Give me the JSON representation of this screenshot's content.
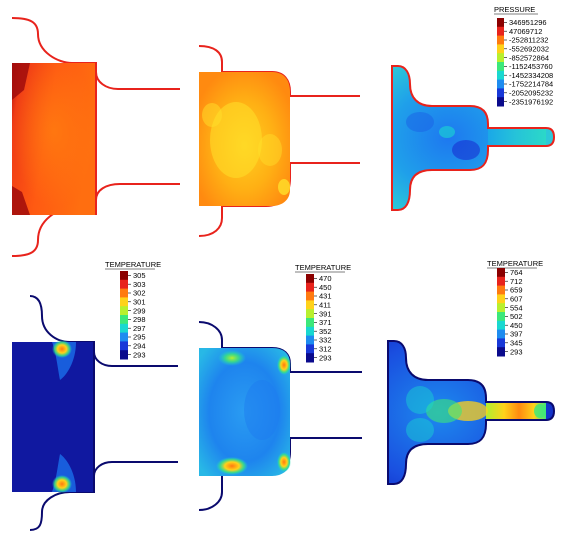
{
  "pressure_legend": {
    "title": "PRESSURE",
    "values": [
      "346951296",
      "47069712",
      "-252811232",
      "-552692032",
      "-852572864",
      "-1152453760",
      "-1452334208",
      "-1752214784",
      "-2052095232",
      "-2351976192"
    ],
    "colors": [
      "#8b0000",
      "#e8231c",
      "#ff7a10",
      "#ffd21a",
      "#b8f02e",
      "#3ce87a",
      "#19d8d0",
      "#1e8cf0",
      "#1838d8",
      "#0a0a8c"
    ]
  },
  "temperature_legends": [
    {
      "title": "TEMPERATURE",
      "values": [
        "305",
        "303",
        "302",
        "301",
        "299",
        "298",
        "297",
        "295",
        "294",
        "293"
      ],
      "colors": [
        "#8b0000",
        "#e8231c",
        "#ff7a10",
        "#ffd21a",
        "#b8f02e",
        "#3ce87a",
        "#19d8d0",
        "#1e8cf0",
        "#1838d8",
        "#0a0a8c"
      ]
    },
    {
      "title": "TEMPERATURE",
      "values": [
        "470",
        "450",
        "431",
        "411",
        "391",
        "371",
        "352",
        "332",
        "312",
        "293"
      ],
      "colors": [
        "#8b0000",
        "#e8231c",
        "#ff7a10",
        "#ffd21a",
        "#b8f02e",
        "#3ce87a",
        "#19d8d0",
        "#1e8cf0",
        "#1838d8",
        "#0a0a8c"
      ]
    },
    {
      "title": "TEMPERATURE",
      "values": [
        "764",
        "712",
        "659",
        "607",
        "554",
        "502",
        "450",
        "397",
        "345",
        "293"
      ],
      "colors": [
        "#8b0000",
        "#e8231c",
        "#ff7a10",
        "#ffd21a",
        "#b8f02e",
        "#3ce87a",
        "#19d8d0",
        "#1e8cf0",
        "#1838d8",
        "#0a0a8c"
      ]
    }
  ],
  "colors": {
    "outline_pressure": "#e8231c",
    "outline_temperature": "#0a0a6e"
  }
}
